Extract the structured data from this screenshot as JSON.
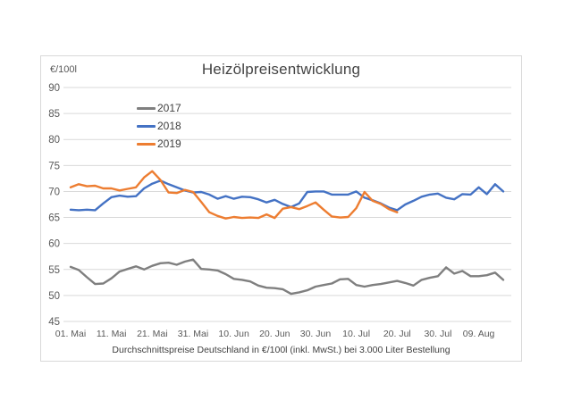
{
  "title": "Heizölpreisentwicklung",
  "y_axis_unit": "€/100l",
  "footer": "Durchschnittspreise Deutschland in €/100l (inkl. MwSt.) bei 3.000 Liter Bestellung",
  "chart_data": {
    "type": "line",
    "title": "Heizölpreisentwicklung",
    "ylabel": "€/100l",
    "ylim": [
      45,
      90
    ],
    "ytick_step": 5,
    "grid": "horizontal",
    "legend_position": "inside-upper-left",
    "x_unit": "days since 01. Mai (values sampled every 2 days)",
    "x_days": [
      0,
      2,
      4,
      6,
      8,
      10,
      12,
      14,
      16,
      18,
      20,
      22,
      24,
      26,
      28,
      30,
      32,
      34,
      36,
      38,
      40,
      42,
      44,
      46,
      48,
      50,
      52,
      54,
      56,
      58,
      60,
      62,
      64,
      66,
      68,
      70,
      72,
      74,
      76,
      78,
      80,
      82,
      84,
      86,
      88,
      90,
      92,
      94,
      96,
      98,
      100,
      102,
      104,
      106
    ],
    "tick_days": [
      0,
      10,
      20,
      30,
      40,
      50,
      60,
      70,
      80,
      90,
      100
    ],
    "tick_labels": [
      "01. Mai",
      "11. Mai",
      "21. Mai",
      "31. Mai",
      "10. Jun",
      "20. Jun",
      "30. Jun",
      "10. Jul",
      "20. Jul",
      "30. Jul",
      "09. Aug"
    ],
    "series": [
      {
        "name": "2017",
        "color": "#7f7f7f",
        "values": [
          55.5,
          54.9,
          53.5,
          52.2,
          52.3,
          53.3,
          54.6,
          55.1,
          55.6,
          55.0,
          55.7,
          56.2,
          56.3,
          55.9,
          56.5,
          56.9,
          55.1,
          55.0,
          54.8,
          54.1,
          53.2,
          53.0,
          52.7,
          51.9,
          51.5,
          51.4,
          51.2,
          50.3,
          50.6,
          51.0,
          51.7,
          52.0,
          52.3,
          53.1,
          53.2,
          52.0,
          51.7,
          52.0,
          52.2,
          52.5,
          52.8,
          52.4,
          51.9,
          53.0,
          53.4,
          53.7,
          55.4,
          54.2,
          54.7,
          53.7,
          53.7,
          53.9,
          54.4,
          53.0
        ]
      },
      {
        "name": "2018",
        "color": "#4472c4",
        "values": [
          66.5,
          66.4,
          66.5,
          66.4,
          67.7,
          68.9,
          69.2,
          69.0,
          69.1,
          70.6,
          71.5,
          72.1,
          71.4,
          70.8,
          70.2,
          69.8,
          69.9,
          69.4,
          68.6,
          69.1,
          68.6,
          69.0,
          68.9,
          68.5,
          67.9,
          68.4,
          67.6,
          67.0,
          67.7,
          69.9,
          70.0,
          70.0,
          69.4,
          69.4,
          69.4,
          70.0,
          68.8,
          68.3,
          67.7,
          66.9,
          66.4,
          67.5,
          68.2,
          69.0,
          69.4,
          69.6,
          68.8,
          68.5,
          69.5,
          69.4,
          70.8,
          69.5,
          71.4,
          70.0
        ]
      },
      {
        "name": "2019",
        "color": "#ed7d31",
        "values": [
          70.8,
          71.4,
          71.0,
          71.1,
          70.6,
          70.6,
          70.2,
          70.5,
          70.8,
          72.7,
          73.9,
          72.2,
          69.8,
          69.7,
          70.3,
          69.9,
          68.0,
          66.0,
          65.3,
          64.8,
          65.1,
          64.9,
          65.0,
          64.9,
          65.6,
          64.9,
          66.7,
          67.0,
          66.6,
          67.2,
          67.9,
          66.5,
          65.2,
          65.0,
          65.1,
          66.8,
          69.9,
          68.2,
          67.6,
          66.6,
          66.0,
          null,
          null,
          null,
          null,
          null,
          null,
          null,
          null,
          null,
          null,
          null,
          null,
          null
        ]
      }
    ],
    "style": {
      "grid_color": "#d9d9d9",
      "axis_label_color": "#595959",
      "line_width": 2.4
    }
  }
}
